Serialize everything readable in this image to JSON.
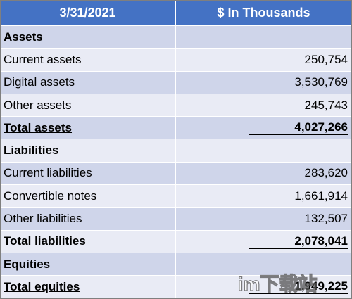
{
  "table": {
    "header": {
      "date": "3/31/2021",
      "units": "$ In Thousands"
    },
    "rows": [
      {
        "label": "Assets",
        "value": "",
        "kind": "section"
      },
      {
        "label": "Current assets",
        "value": "250,754",
        "kind": "item"
      },
      {
        "label": "Digital assets",
        "value": "3,530,769",
        "kind": "item"
      },
      {
        "label": "Other assets",
        "value": "245,743",
        "kind": "item"
      },
      {
        "label": "Total assets",
        "value": "4,027,266",
        "kind": "total"
      },
      {
        "label": "Liabilities",
        "value": "",
        "kind": "section"
      },
      {
        "label": "Current liabilities",
        "value": "283,620",
        "kind": "item"
      },
      {
        "label": "Convertible notes",
        "value": "1,661,914",
        "kind": "item"
      },
      {
        "label": "Other liabilities",
        "value": "132,507",
        "kind": "item"
      },
      {
        "label": "Total liabilities",
        "value": "2,078,041",
        "kind": "total"
      },
      {
        "label": "Equities",
        "value": "",
        "kind": "section"
      },
      {
        "label": "Total equities",
        "value": "1,949,225",
        "kind": "total"
      }
    ]
  },
  "watermark": {
    "text": "im下载站"
  },
  "colors": {
    "header": "#4472c4",
    "row_odd": "#cfd5ea",
    "row_even": "#e9ebf5"
  }
}
